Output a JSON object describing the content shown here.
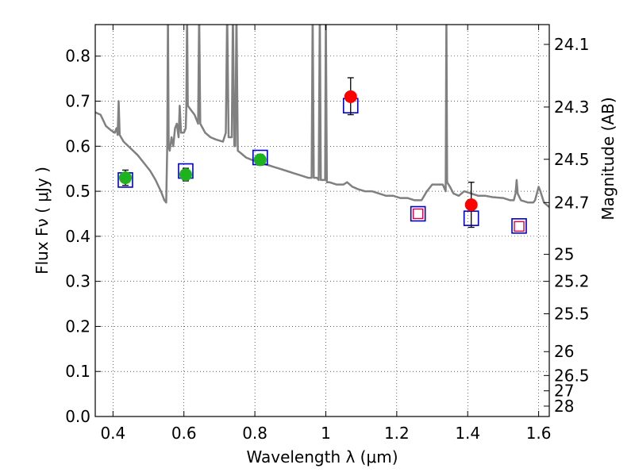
{
  "chart_data": {
    "type": "scatter",
    "title": "",
    "xlabel": "Wavelength  λ (μm)",
    "ylabel_left": "Flux  Fν ( μJy )",
    "ylabel_right": "Magnitude (AB)",
    "xlim": [
      0.35,
      1.63
    ],
    "ylim": [
      0.0,
      0.87
    ],
    "xticks": [
      0.4,
      0.6,
      0.8,
      1.0,
      1.2,
      1.4,
      1.6
    ],
    "xtick_labels": [
      "0.4",
      "0.6",
      "0.8",
      "1",
      "1.2",
      "1.4",
      "1.6"
    ],
    "yticks": [
      0.0,
      0.1,
      0.2,
      0.3,
      0.4,
      0.5,
      0.6,
      0.7,
      0.8
    ],
    "ytick_labels": [
      "0.0",
      "0.1",
      "0.2",
      "0.3",
      "0.4",
      "0.5",
      "0.6",
      "0.7",
      "0.8"
    ],
    "right_ticks": [
      {
        "label": "24.1",
        "flux": 0.826
      },
      {
        "label": "24.3",
        "flux": 0.687
      },
      {
        "label": "24.5",
        "flux": 0.571
      },
      {
        "label": "24.7",
        "flux": 0.475
      },
      {
        "label": "25",
        "flux": 0.36
      },
      {
        "label": "25.2",
        "flux": 0.3
      },
      {
        "label": "25.5",
        "flux": 0.228
      },
      {
        "label": "26",
        "flux": 0.144
      },
      {
        "label": "26.5",
        "flux": 0.091
      },
      {
        "label": "27",
        "flux": 0.057
      },
      {
        "label": "28",
        "flux": 0.023
      }
    ],
    "grid": true,
    "colors": {
      "spectrum": "#808080",
      "green_points": "#1fb21f",
      "red_points": "#ff0000",
      "model_box": "#0000cc",
      "upper_box": "#dd0044",
      "errorbar": "#000000"
    },
    "series": [
      {
        "marker": "green-circle",
        "points": [
          {
            "x": 0.435,
            "y": 0.53,
            "err": 0.017
          },
          {
            "x": 0.605,
            "y": 0.537,
            "err": 0.014
          },
          {
            "x": 0.815,
            "y": 0.57,
            "err": 0.012
          }
        ]
      },
      {
        "marker": "red-circle",
        "points": [
          {
            "x": 1.07,
            "y": 0.71,
            "err_low": 0.04,
            "err_high": 0.042
          },
          {
            "x": 1.41,
            "y": 0.47,
            "err_low": 0.05,
            "err_high": 0.05
          }
        ]
      },
      {
        "marker": "blue-open-square",
        "points": [
          {
            "x": 0.435,
            "y": 0.525
          },
          {
            "x": 0.605,
            "y": 0.545
          },
          {
            "x": 0.815,
            "y": 0.575
          },
          {
            "x": 1.07,
            "y": 0.69
          },
          {
            "x": 1.26,
            "y": 0.45
          },
          {
            "x": 1.41,
            "y": 0.44
          },
          {
            "x": 1.545,
            "y": 0.423
          }
        ]
      },
      {
        "marker": "red-open-square",
        "points": [
          {
            "x": 1.26,
            "y": 0.45
          },
          {
            "x": 1.545,
            "y": 0.422
          }
        ]
      },
      {
        "marker": "line",
        "points": [
          [
            0.35,
            0.675
          ],
          [
            0.365,
            0.67
          ],
          [
            0.38,
            0.645
          ],
          [
            0.395,
            0.635
          ],
          [
            0.405,
            0.63
          ],
          [
            0.41,
            0.64
          ],
          [
            0.413,
            0.625
          ],
          [
            0.416,
            0.7
          ],
          [
            0.419,
            0.625
          ],
          [
            0.43,
            0.61
          ],
          [
            0.45,
            0.595
          ],
          [
            0.47,
            0.58
          ],
          [
            0.49,
            0.56
          ],
          [
            0.505,
            0.545
          ],
          [
            0.52,
            0.525
          ],
          [
            0.535,
            0.5
          ],
          [
            0.545,
            0.48
          ],
          [
            0.55,
            0.475
          ],
          [
            0.553,
            0.6
          ],
          [
            0.555,
            0.9
          ],
          [
            0.557,
            0.6
          ],
          [
            0.56,
            0.59
          ],
          [
            0.565,
            0.62
          ],
          [
            0.57,
            0.6
          ],
          [
            0.575,
            0.64
          ],
          [
            0.58,
            0.65
          ],
          [
            0.585,
            0.62
          ],
          [
            0.588,
            0.69
          ],
          [
            0.592,
            0.63
          ],
          [
            0.6,
            0.63
          ],
          [
            0.605,
            0.64
          ],
          [
            0.607,
            0.69
          ],
          [
            0.609,
            0.9
          ],
          [
            0.611,
            0.69
          ],
          [
            0.62,
            0.68
          ],
          [
            0.63,
            0.67
          ],
          [
            0.64,
            0.65
          ],
          [
            0.643,
            0.9
          ],
          [
            0.646,
            0.65
          ],
          [
            0.66,
            0.63
          ],
          [
            0.675,
            0.62
          ],
          [
            0.69,
            0.615
          ],
          [
            0.71,
            0.61
          ],
          [
            0.718,
            0.63
          ],
          [
            0.722,
            0.9
          ],
          [
            0.726,
            0.62
          ],
          [
            0.735,
            0.62
          ],
          [
            0.738,
            0.9
          ],
          [
            0.742,
            0.6
          ],
          [
            0.745,
            0.6
          ],
          [
            0.748,
            0.9
          ],
          [
            0.752,
            0.59
          ],
          [
            0.76,
            0.585
          ],
          [
            0.775,
            0.575
          ],
          [
            0.79,
            0.57
          ],
          [
            0.81,
            0.565
          ],
          [
            0.83,
            0.56
          ],
          [
            0.85,
            0.555
          ],
          [
            0.87,
            0.55
          ],
          [
            0.89,
            0.545
          ],
          [
            0.91,
            0.54
          ],
          [
            0.93,
            0.535
          ],
          [
            0.95,
            0.53
          ],
          [
            0.96,
            0.53
          ],
          [
            0.963,
            0.9
          ],
          [
            0.966,
            0.53
          ],
          [
            0.975,
            0.53
          ],
          [
            0.98,
            0.525
          ],
          [
            0.983,
            0.9
          ],
          [
            0.986,
            0.525
          ],
          [
            0.998,
            0.525
          ],
          [
            1.0,
            0.9
          ],
          [
            1.003,
            0.52
          ],
          [
            1.01,
            0.52
          ],
          [
            1.03,
            0.515
          ],
          [
            1.05,
            0.515
          ],
          [
            1.06,
            0.52
          ],
          [
            1.075,
            0.51
          ],
          [
            1.09,
            0.505
          ],
          [
            1.11,
            0.5
          ],
          [
            1.13,
            0.5
          ],
          [
            1.15,
            0.495
          ],
          [
            1.17,
            0.49
          ],
          [
            1.19,
            0.49
          ],
          [
            1.21,
            0.485
          ],
          [
            1.23,
            0.485
          ],
          [
            1.25,
            0.48
          ],
          [
            1.27,
            0.48
          ],
          [
            1.285,
            0.5
          ],
          [
            1.3,
            0.515
          ],
          [
            1.33,
            0.515
          ],
          [
            1.338,
            0.5
          ],
          [
            1.34,
            0.9
          ],
          [
            1.342,
            0.52
          ],
          [
            1.35,
            0.51
          ],
          [
            1.36,
            0.495
          ],
          [
            1.375,
            0.49
          ],
          [
            1.39,
            0.5
          ],
          [
            1.41,
            0.495
          ],
          [
            1.43,
            0.49
          ],
          [
            1.45,
            0.49
          ],
          [
            1.47,
            0.487
          ],
          [
            1.5,
            0.485
          ],
          [
            1.52,
            0.48
          ],
          [
            1.53,
            0.48
          ],
          [
            1.535,
            0.495
          ],
          [
            1.538,
            0.525
          ],
          [
            1.541,
            0.495
          ],
          [
            1.55,
            0.48
          ],
          [
            1.57,
            0.475
          ],
          [
            1.585,
            0.475
          ],
          [
            1.59,
            0.48
          ],
          [
            1.6,
            0.51
          ],
          [
            1.605,
            0.5
          ],
          [
            1.615,
            0.475
          ],
          [
            1.63,
            0.465
          ]
        ]
      }
    ]
  }
}
